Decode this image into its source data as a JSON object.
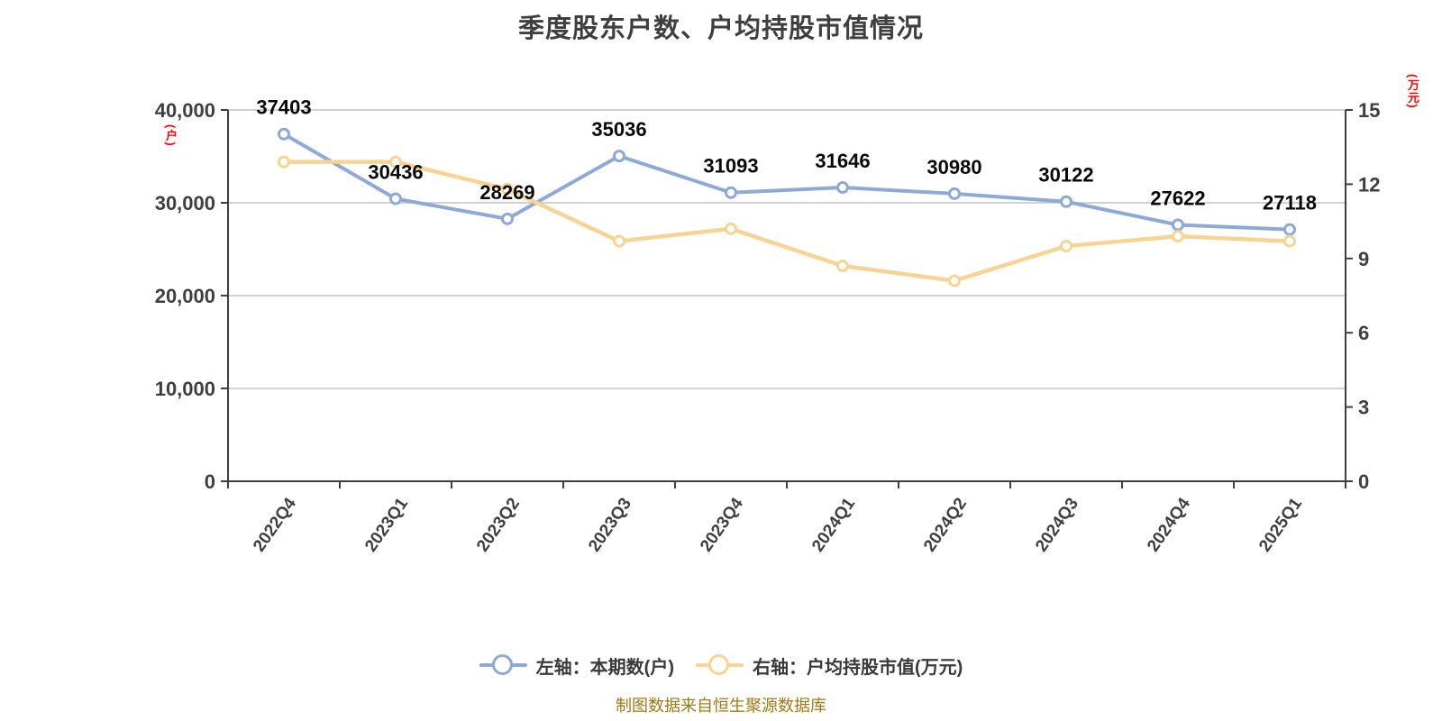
{
  "title": "季度股东户数、户均持股市值情况",
  "source_note": "制图数据来自恒生聚源数据库",
  "left_axis": {
    "unit": "(户)",
    "tick_values": [
      0,
      10000,
      20000,
      30000,
      40000
    ],
    "tick_labels": [
      "0",
      "10,000",
      "20,000",
      "30,000",
      "40,000"
    ]
  },
  "right_axis": {
    "unit": "(万元)",
    "tick_values": [
      0,
      3,
      6,
      9,
      12,
      15
    ],
    "tick_labels": [
      "0",
      "3",
      "6",
      "9",
      "12",
      "15"
    ]
  },
  "legend": [
    {
      "label": "左轴：本期数(户)",
      "color": "#8EA9D5"
    },
    {
      "label": "右轴：户均持股市值(万元)",
      "color": "#F6D494"
    }
  ],
  "chart_data": {
    "type": "line",
    "categories": [
      "2022Q4",
      "2023Q1",
      "2023Q2",
      "2023Q3",
      "2023Q4",
      "2024Q1",
      "2024Q2",
      "2024Q3",
      "2024Q4",
      "2025Q1"
    ],
    "series": [
      {
        "name": "左轴：本期数(户)",
        "yAxis": "left",
        "color": "#8EA9D5",
        "show_labels": true,
        "values": [
          37403,
          30436,
          28269,
          35036,
          31093,
          31646,
          30980,
          30122,
          27622,
          27118
        ]
      },
      {
        "name": "右轴：户均持股市值(万元)",
        "yAxis": "right",
        "color": "#F6D494",
        "show_labels": false,
        "values": [
          12.9,
          12.9,
          11.8,
          9.7,
          10.2,
          8.7,
          8.1,
          9.5,
          9.9,
          9.7
        ]
      }
    ],
    "left_ylim": [
      0,
      40000
    ],
    "right_ylim": [
      0,
      15
    ],
    "grid": true,
    "legend_position": "bottom"
  },
  "colors": {
    "grid": "#C4C4C4",
    "axis": "#3F3F3F",
    "tick_text": "#3F3F3F",
    "data_label": "#0A0A0A",
    "unit_red": "#FF0000",
    "caption": "#9E7913",
    "marker_fill": "#FFFFFF"
  }
}
